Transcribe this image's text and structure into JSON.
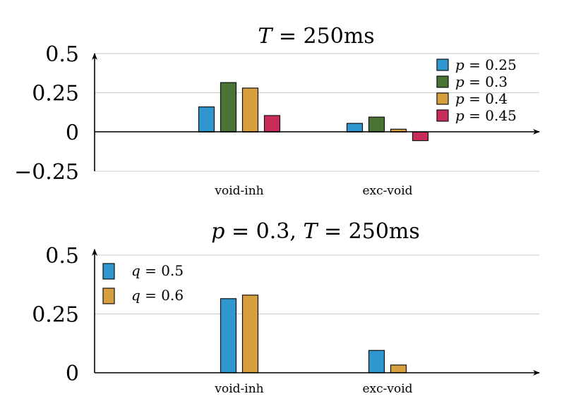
{
  "chart_data": [
    {
      "type": "bar",
      "title": {
        "var": "T",
        "rest": " = 250ms"
      },
      "categories": [
        "void-inh",
        "exc-void"
      ],
      "ylim": [
        -0.25,
        0.5
      ],
      "yticks": [
        0.5,
        0.25,
        0,
        -0.25
      ],
      "ytick_labels": [
        "0.5",
        "0.25",
        "0",
        "−0.25"
      ],
      "grid": true,
      "legend_position": "top-right",
      "series": [
        {
          "name": "p = 0.25",
          "var": "p",
          "rest": " = 0.25",
          "color": "#2f96cf",
          "values": [
            0.16,
            0.055
          ]
        },
        {
          "name": "p = 0.3",
          "var": "p",
          "rest": " = 0.3",
          "color": "#4a7336",
          "values": [
            0.315,
            0.095
          ]
        },
        {
          "name": "p = 0.4",
          "var": "p",
          "rest": " = 0.4",
          "color": "#d79f3e",
          "values": [
            0.28,
            0.018
          ]
        },
        {
          "name": "p = 0.45",
          "var": "p",
          "rest": " = 0.45",
          "color": "#c82d5a",
          "values": [
            0.105,
            -0.055
          ]
        }
      ]
    },
    {
      "type": "bar",
      "title": {
        "var1": "p",
        "rest1": " = 0.3, ",
        "var2": "T",
        "rest2": " = 250ms"
      },
      "categories": [
        "void-inh",
        "exc-void"
      ],
      "ylim": [
        0,
        0.5
      ],
      "yticks": [
        0.5,
        0.25,
        0
      ],
      "ytick_labels": [
        "0.5",
        "0.25",
        "0"
      ],
      "grid": true,
      "legend_position": "top-left",
      "series": [
        {
          "name": "q = 0.5",
          "var": "q",
          "rest": " = 0.5",
          "color": "#2f96cf",
          "values": [
            0.315,
            0.095
          ]
        },
        {
          "name": "q = 0.6",
          "var": "q",
          "rest": " = 0.6",
          "color": "#d79f3e",
          "values": [
            0.33,
            0.033
          ]
        }
      ]
    }
  ]
}
